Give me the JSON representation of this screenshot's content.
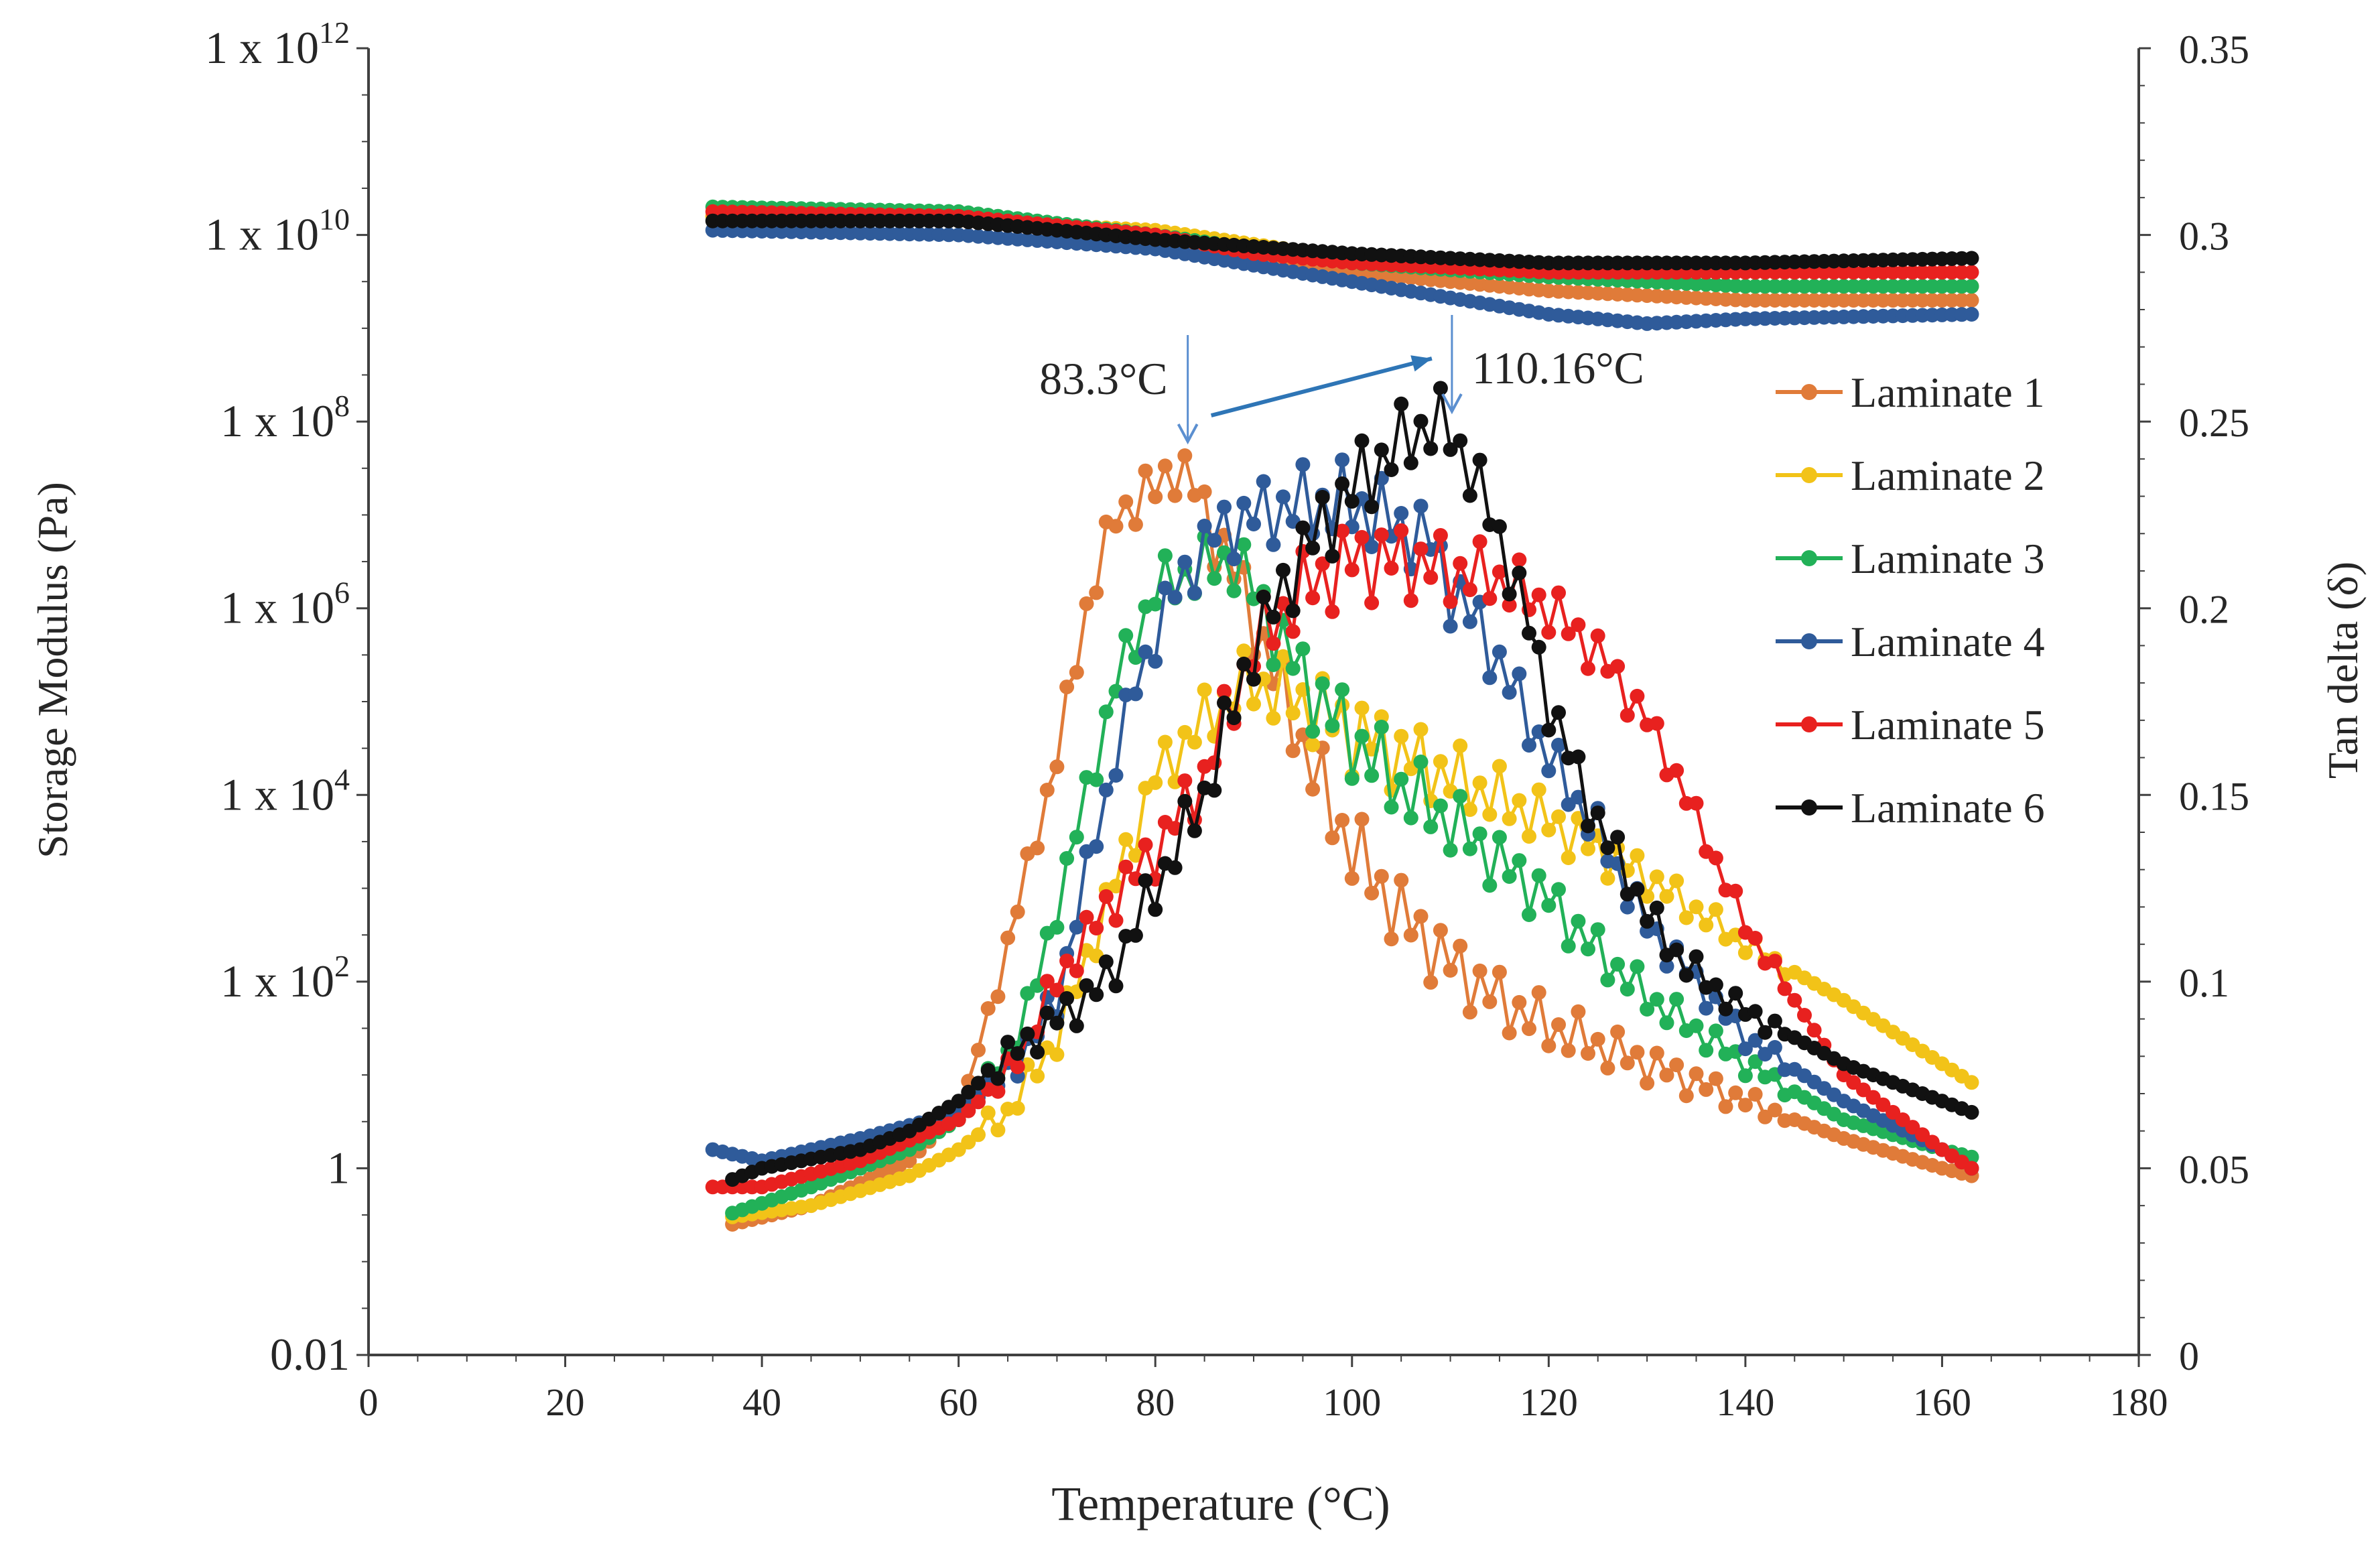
{
  "chart_data": {
    "type": "line",
    "title": "",
    "xlabel": "Temperature (°C)",
    "ylabel_left": "Storage Modulus (Pa)",
    "ylabel_right": "Tan delta (δ)",
    "xlim": [
      0,
      180
    ],
    "ylim_left_log10": [
      -2,
      12
    ],
    "ylim_right": [
      0,
      0.35
    ],
    "grid": false,
    "legend_position": "right",
    "x_ticks": [
      0,
      20,
      40,
      60,
      80,
      100,
      120,
      140,
      160,
      180
    ],
    "y_left_ticks": [
      {
        "exp": 12,
        "base": "1 x 10",
        "sup": "12",
        "plain": ""
      },
      {
        "exp": 10,
        "base": "1 x 10",
        "sup": "10",
        "plain": ""
      },
      {
        "exp": 8,
        "base": "1 x 10",
        "sup": "8",
        "plain": ""
      },
      {
        "exp": 6,
        "base": "1 x 10",
        "sup": "6",
        "plain": ""
      },
      {
        "exp": 4,
        "base": "1 x 10",
        "sup": "4",
        "plain": ""
      },
      {
        "exp": 2,
        "base": "1 x 10",
        "sup": "2",
        "plain": ""
      },
      {
        "exp": 0,
        "base": "",
        "sup": "",
        "plain": "1"
      },
      {
        "exp": -2,
        "base": "",
        "sup": "",
        "plain": "0.01"
      }
    ],
    "y_right_ticks": [
      "0",
      "0.05",
      "0.1",
      "0.15",
      "0.2",
      "0.25",
      "0.3",
      "0.35"
    ],
    "annotations": [
      {
        "text": "83.3°C",
        "x": 83.3
      },
      {
        "text": "110.16°C",
        "x": 110.16
      }
    ],
    "series": [
      {
        "name": "Laminate 1",
        "color": "#E07B39",
        "storage_modulus_log10": {
          "x": [
            35,
            60,
            80,
            100,
            120,
            140,
            163
          ],
          "y": [
            10.2,
            10.15,
            9.95,
            9.6,
            9.4,
            9.3,
            9.3
          ]
        },
        "tan_delta": {
          "x": [
            37,
            45,
            55,
            60,
            63,
            66,
            70,
            73,
            76,
            80,
            82,
            84,
            86,
            88,
            91,
            94,
            98,
            102,
            106,
            110,
            115,
            120,
            130,
            140,
            150,
            160,
            163
          ],
          "y": [
            0.035,
            0.04,
            0.052,
            0.065,
            0.09,
            0.12,
            0.16,
            0.2,
            0.225,
            0.232,
            0.238,
            0.232,
            0.22,
            0.21,
            0.19,
            0.17,
            0.145,
            0.128,
            0.115,
            0.105,
            0.095,
            0.088,
            0.078,
            0.068,
            0.058,
            0.05,
            0.048
          ]
        }
      },
      {
        "name": "Laminate 2",
        "color": "#F2C318",
        "storage_modulus_log10": {
          "x": [
            35,
            60,
            80,
            100,
            120,
            140,
            163
          ],
          "y": [
            10.2,
            10.15,
            10.05,
            9.75,
            9.55,
            9.45,
            9.45
          ]
        },
        "tan_delta": {
          "x": [
            37,
            45,
            55,
            60,
            65,
            70,
            75,
            80,
            85,
            88,
            90,
            95,
            100,
            110,
            120,
            130,
            140,
            150,
            160,
            163
          ],
          "y": [
            0.037,
            0.04,
            0.048,
            0.055,
            0.065,
            0.085,
            0.12,
            0.155,
            0.17,
            0.178,
            0.18,
            0.175,
            0.167,
            0.155,
            0.143,
            0.128,
            0.11,
            0.095,
            0.078,
            0.073
          ]
        }
      },
      {
        "name": "Laminate 3",
        "color": "#22B158",
        "storage_modulus_log10": {
          "x": [
            35,
            60,
            80,
            100,
            120,
            140,
            163
          ],
          "y": [
            10.3,
            10.25,
            10.0,
            9.7,
            9.55,
            9.45,
            9.45
          ]
        },
        "tan_delta": {
          "x": [
            37,
            45,
            55,
            60,
            65,
            68,
            72,
            76,
            80,
            84,
            88,
            90,
            93,
            96,
            100,
            105,
            110,
            115,
            120,
            125,
            130,
            140,
            150,
            160,
            163
          ],
          "y": [
            0.038,
            0.045,
            0.055,
            0.063,
            0.08,
            0.1,
            0.14,
            0.18,
            0.205,
            0.21,
            0.213,
            0.205,
            0.19,
            0.178,
            0.165,
            0.152,
            0.143,
            0.132,
            0.122,
            0.108,
            0.096,
            0.078,
            0.063,
            0.055,
            0.053
          ]
        }
      },
      {
        "name": "Laminate 4",
        "color": "#2F5B9A",
        "storage_modulus_log10": {
          "x": [
            35,
            60,
            80,
            100,
            120,
            130,
            140,
            163
          ],
          "y": [
            10.05,
            10.0,
            9.85,
            9.5,
            9.15,
            9.05,
            9.1,
            9.15
          ]
        },
        "tan_delta": {
          "x": [
            35,
            40,
            50,
            60,
            65,
            70,
            74,
            78,
            82,
            86,
            90,
            95,
            100,
            104,
            108,
            110,
            113,
            116,
            120,
            125,
            130,
            135,
            140,
            150,
            160,
            163
          ],
          "y": [
            0.055,
            0.052,
            0.058,
            0.065,
            0.075,
            0.095,
            0.14,
            0.18,
            0.205,
            0.22,
            0.225,
            0.228,
            0.228,
            0.223,
            0.218,
            0.205,
            0.195,
            0.18,
            0.16,
            0.14,
            0.115,
            0.1,
            0.085,
            0.068,
            0.055,
            0.05
          ]
        }
      },
      {
        "name": "Laminate 5",
        "color": "#E8211F",
        "storage_modulus_log10": {
          "x": [
            35,
            60,
            80,
            90,
            100,
            120,
            140,
            163
          ],
          "y": [
            10.25,
            10.2,
            10.0,
            9.8,
            9.7,
            9.6,
            9.6,
            9.6
          ]
        },
        "tan_delta": {
          "x": [
            35,
            40,
            50,
            60,
            65,
            70,
            75,
            80,
            85,
            90,
            95,
            100,
            105,
            110,
            115,
            120,
            125,
            130,
            133,
            136,
            140,
            145,
            150,
            160,
            163
          ],
          "y": [
            0.045,
            0.045,
            0.052,
            0.063,
            0.075,
            0.1,
            0.12,
            0.135,
            0.155,
            0.19,
            0.205,
            0.213,
            0.213,
            0.21,
            0.208,
            0.2,
            0.188,
            0.17,
            0.155,
            0.138,
            0.115,
            0.095,
            0.075,
            0.055,
            0.05
          ]
        }
      },
      {
        "name": "Laminate 6",
        "color": "#111111",
        "storage_modulus_log10": {
          "x": [
            35,
            60,
            80,
            100,
            110,
            120,
            140,
            163
          ],
          "y": [
            10.15,
            10.15,
            9.95,
            9.8,
            9.75,
            9.7,
            9.7,
            9.75
          ]
        },
        "tan_delta": {
          "x": [
            37,
            40,
            50,
            55,
            60,
            65,
            70,
            75,
            80,
            85,
            90,
            95,
            100,
            104,
            107,
            108.5,
            110,
            112,
            114,
            116,
            118,
            120,
            124,
            128,
            132,
            136,
            140,
            145,
            150,
            160,
            163
          ],
          "y": [
            0.047,
            0.05,
            0.055,
            0.06,
            0.068,
            0.08,
            0.09,
            0.1,
            0.125,
            0.15,
            0.19,
            0.215,
            0.232,
            0.242,
            0.248,
            0.25,
            0.247,
            0.238,
            0.225,
            0.212,
            0.195,
            0.175,
            0.148,
            0.128,
            0.11,
            0.1,
            0.092,
            0.085,
            0.078,
            0.068,
            0.065
          ]
        }
      }
    ]
  }
}
